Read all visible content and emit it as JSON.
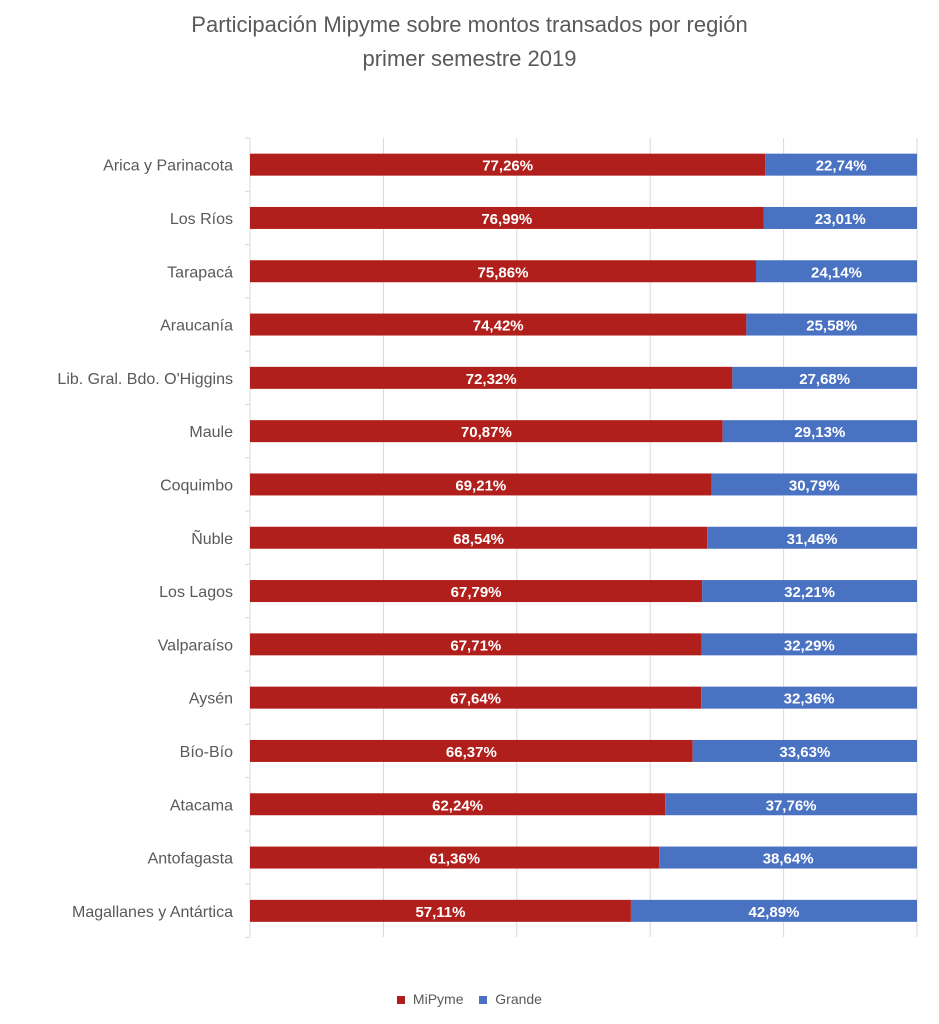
{
  "chart_data": {
    "type": "bar",
    "orientation": "horizontal",
    "stacked": true,
    "title": "Participación Mipyme sobre montos transados por región",
    "subtitle": "primer semestre 2019",
    "categories": [
      "Arica y Parinacota",
      "Los Ríos",
      "Tarapacá",
      "Araucanía",
      "Lib. Gral. Bdo. O'Higgins",
      "Maule",
      "Coquimbo",
      "Ñuble",
      "Los Lagos",
      "Valparaíso",
      "Aysén",
      "Bío-Bío",
      "Atacama",
      "Antofagasta",
      "Magallanes y Antártica"
    ],
    "series": [
      {
        "name": "MiPyme",
        "color": "#b11f1c",
        "values": [
          77.26,
          76.99,
          75.86,
          74.42,
          72.32,
          70.87,
          69.21,
          68.54,
          67.79,
          67.71,
          67.64,
          66.37,
          62.24,
          61.36,
          57.11
        ],
        "labels": [
          "77,26%",
          "76,99%",
          "75,86%",
          "74,42%",
          "72,32%",
          "70,87%",
          "69,21%",
          "68,54%",
          "67,79%",
          "67,71%",
          "67,64%",
          "66,37%",
          "62,24%",
          "61,36%",
          "57,11%"
        ]
      },
      {
        "name": "Grande",
        "color": "#4a72c2",
        "values": [
          22.74,
          23.01,
          24.14,
          25.58,
          27.68,
          29.13,
          30.79,
          31.46,
          32.21,
          32.29,
          32.36,
          33.63,
          37.76,
          38.64,
          42.89
        ],
        "labels": [
          "22,74%",
          "23,01%",
          "24,14%",
          "25,58%",
          "27,68%",
          "29,13%",
          "30,79%",
          "31,46%",
          "32,21%",
          "32,29%",
          "32,36%",
          "33,63%",
          "37,76%",
          "38,64%",
          "42,89%"
        ]
      }
    ],
    "xlim": [
      0,
      100
    ],
    "grid": true,
    "legend_position": "bottom"
  }
}
